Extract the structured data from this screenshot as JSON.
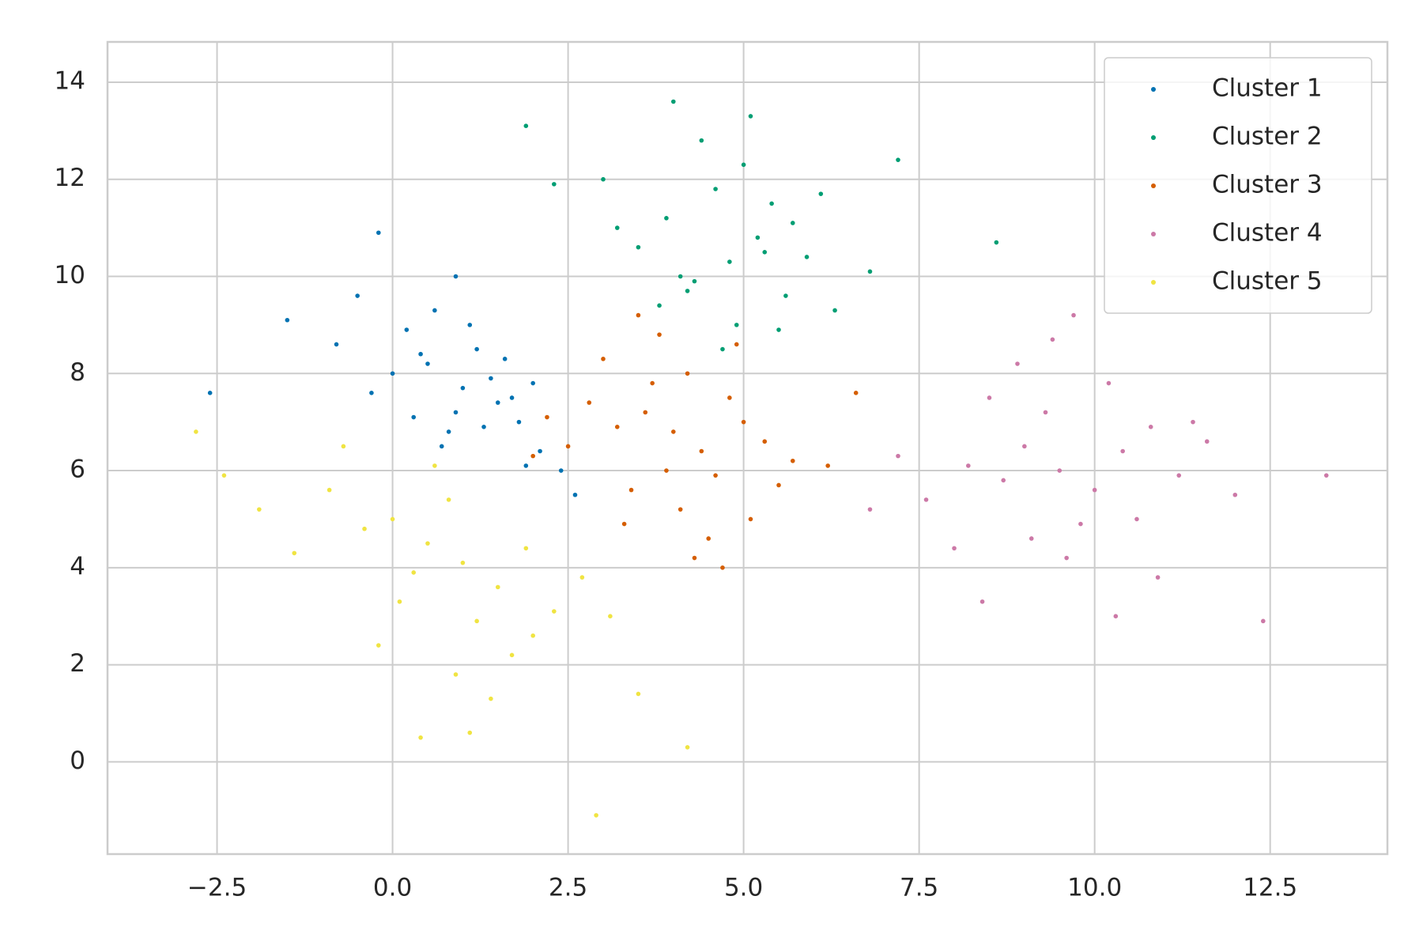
{
  "chart_data": {
    "type": "scatter",
    "xlim": [
      -4.06,
      14.17
    ],
    "ylim": [
      -1.9,
      14.83
    ],
    "xticks": [
      {
        "value": -2.5,
        "label": "−2.5"
      },
      {
        "value": 0,
        "label": "0.0"
      },
      {
        "value": 2.5,
        "label": "2.5"
      },
      {
        "value": 5,
        "label": "5.0"
      },
      {
        "value": 7.5,
        "label": "7.5"
      },
      {
        "value": 10,
        "label": "10.0"
      },
      {
        "value": 12.5,
        "label": "12.5"
      }
    ],
    "yticks": [
      0,
      2,
      4,
      6,
      8,
      10,
      12,
      14
    ],
    "grid": true,
    "legend": "upper right",
    "series": [
      {
        "name": "Cluster 1",
        "color": "#0072b2",
        "x": [
          1.0,
          0.5,
          1.5,
          0.2,
          1.8,
          0.8,
          1.2,
          -0.3,
          2.1,
          0.6,
          1.4,
          0.9,
          -0.8,
          1.7,
          0.3,
          1.1,
          2.4,
          0.0,
          1.6,
          0.7,
          -1.5,
          1.3,
          2.0,
          0.4,
          -0.5,
          1.9,
          0.9,
          2.6,
          -2.6,
          -0.2
        ],
        "values": [
          7.7,
          8.2,
          7.4,
          8.9,
          7.0,
          6.8,
          8.5,
          7.6,
          6.4,
          9.3,
          7.9,
          7.2,
          8.6,
          7.5,
          7.1,
          9.0,
          6.0,
          8.0,
          8.3,
          6.5,
          9.1,
          6.9,
          7.8,
          8.4,
          9.6,
          6.1,
          10.0,
          5.5,
          7.6,
          10.9
        ]
      },
      {
        "name": "Cluster 2",
        "color": "#009e73",
        "x": [
          4.8,
          5.2,
          4.3,
          5.6,
          3.9,
          4.6,
          5.9,
          4.1,
          5.0,
          3.5,
          6.3,
          4.9,
          5.4,
          3.2,
          6.8,
          4.4,
          5.7,
          3.8,
          5.1,
          4.0,
          2.3,
          7.2,
          4.7,
          5.5,
          3.0,
          6.1,
          4.2,
          5.3,
          8.6,
          1.9
        ],
        "values": [
          10.3,
          10.8,
          9.9,
          9.6,
          11.2,
          11.8,
          10.4,
          10.0,
          12.3,
          10.6,
          9.3,
          9.0,
          11.5,
          11.0,
          10.1,
          12.8,
          11.1,
          9.4,
          13.3,
          13.6,
          11.9,
          12.4,
          8.5,
          8.9,
          12.0,
          11.7,
          9.7,
          10.5,
          10.7,
          13.1
        ]
      },
      {
        "name": "Cluster 3",
        "color": "#d55e00",
        "x": [
          4.0,
          3.6,
          4.4,
          3.2,
          4.8,
          3.9,
          4.2,
          2.8,
          5.3,
          3.4,
          4.6,
          3.0,
          5.0,
          2.5,
          5.7,
          4.1,
          3.7,
          4.9,
          2.2,
          6.2,
          3.3,
          4.5,
          5.5,
          3.8,
          6.6,
          2.0,
          4.3,
          5.1,
          3.5,
          4.7
        ],
        "values": [
          6.8,
          7.2,
          6.4,
          6.9,
          7.5,
          6.0,
          8.0,
          7.4,
          6.6,
          5.6,
          5.9,
          8.3,
          7.0,
          6.5,
          6.2,
          5.2,
          7.8,
          8.6,
          7.1,
          6.1,
          4.9,
          4.6,
          5.7,
          8.8,
          7.6,
          6.3,
          4.2,
          5.0,
          9.2,
          4.0
        ]
      },
      {
        "name": "Cluster 4",
        "color": "#cc79a7",
        "x": [
          9.5,
          9.0,
          10.0,
          8.7,
          10.4,
          9.3,
          9.8,
          8.2,
          10.8,
          9.1,
          11.2,
          8.5,
          10.2,
          7.6,
          11.6,
          9.6,
          8.9,
          10.6,
          7.2,
          12.0,
          9.4,
          10.9,
          8.0,
          11.4,
          6.8,
          12.4,
          9.7,
          8.4,
          13.3,
          10.3
        ],
        "values": [
          6.0,
          6.5,
          5.6,
          5.8,
          6.4,
          7.2,
          4.9,
          6.1,
          6.9,
          4.6,
          5.9,
          7.5,
          7.8,
          5.4,
          6.6,
          4.2,
          8.2,
          5.0,
          6.3,
          5.5,
          8.7,
          3.8,
          4.4,
          7.0,
          5.2,
          2.9,
          9.2,
          3.3,
          5.9,
          3.0
        ]
      },
      {
        "name": "Cluster 5",
        "color": "#f0e442",
        "x": [
          0.5,
          0.0,
          1.0,
          -0.4,
          1.5,
          0.3,
          0.8,
          -0.9,
          1.9,
          0.1,
          1.2,
          -1.4,
          2.3,
          0.6,
          -0.2,
          1.7,
          2.7,
          -1.9,
          0.9,
          3.1,
          -0.7,
          1.4,
          2.0,
          -2.4,
          0.4,
          3.5,
          1.1,
          4.2,
          -2.8,
          2.9
        ],
        "values": [
          4.5,
          5.0,
          4.1,
          4.8,
          3.6,
          3.9,
          5.4,
          5.6,
          4.4,
          3.3,
          2.9,
          4.3,
          3.1,
          6.1,
          2.4,
          2.2,
          3.8,
          5.2,
          1.8,
          3.0,
          6.5,
          1.3,
          2.6,
          5.9,
          0.5,
          1.4,
          0.6,
          0.3,
          6.8,
          -1.1
        ]
      }
    ]
  }
}
